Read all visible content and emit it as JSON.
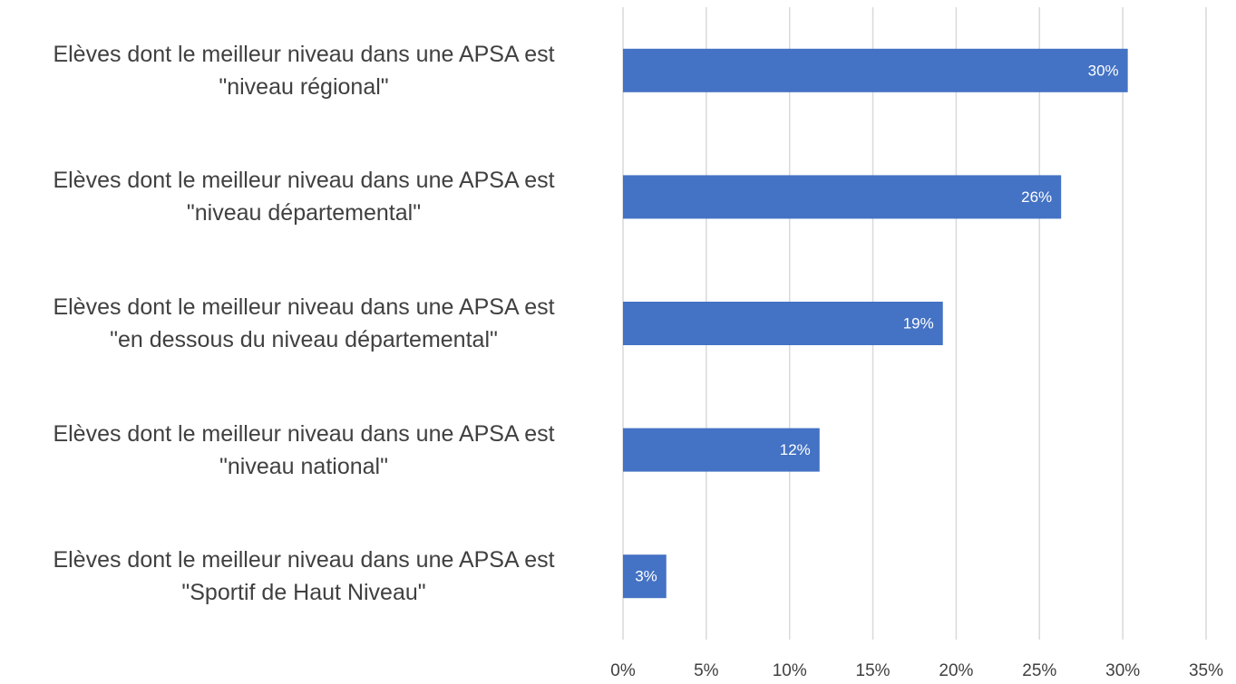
{
  "chart_data": {
    "type": "bar",
    "orientation": "horizontal",
    "categories": [
      "Elèves dont le meilleur niveau dans une APSA est\n\"niveau régional\"",
      "Elèves dont le meilleur niveau dans une APSA est\n\"niveau départemental\"",
      "Elèves dont le meilleur niveau dans une APSA est\n\"en dessous du niveau départemental\"",
      "Elèves dont le meilleur niveau dans une APSA est\n\"niveau national\"",
      "Elèves dont le meilleur niveau dans une APSA est\n\"Sportif de Haut Niveau\""
    ],
    "values": [
      30.3,
      26.3,
      19.2,
      11.8,
      2.6
    ],
    "value_labels": [
      "30%",
      "26%",
      "19%",
      "12%",
      "3%"
    ],
    "color": "#4472c4",
    "xlim": [
      0,
      35
    ],
    "xticks": [
      {
        "value": 0,
        "label": "0%"
      },
      {
        "value": 5,
        "label": "5%"
      },
      {
        "value": 10,
        "label": "10%"
      },
      {
        "value": 15,
        "label": "15%"
      },
      {
        "value": 20,
        "label": "20%"
      },
      {
        "value": 25,
        "label": "25%"
      },
      {
        "value": 30,
        "label": "30%"
      },
      {
        "value": 35,
        "label": "35%"
      }
    ],
    "grid": true
  }
}
